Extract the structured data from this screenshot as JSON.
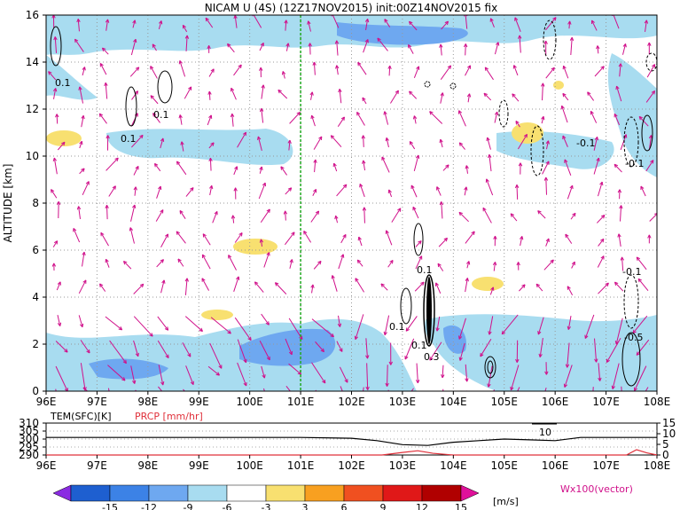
{
  "title": "NICAM U (4S) (12Z17NOV2015) init:00Z14NOV2015 fix",
  "main_panel": {
    "ylabel": "ALTITUDE [km]",
    "yticks": [
      "0",
      "2",
      "4",
      "6",
      "8",
      "10",
      "12",
      "14",
      "16"
    ],
    "ylim": [
      0,
      16
    ],
    "xlim": [
      96,
      108
    ],
    "xticks": [
      "96E",
      "97E",
      "98E",
      "99E",
      "100E",
      "101E",
      "102E",
      "103E",
      "104E",
      "105E",
      "106E",
      "107E",
      "108E"
    ],
    "marker_line_lon": 101,
    "contour_labels": [
      "0.1",
      "0.1",
      "0.1",
      "0.1",
      "0.1",
      "0.1",
      "-0.1",
      "-0.1",
      "-0.1",
      "-0.5",
      "0.3"
    ]
  },
  "sub_panel": {
    "left_label_tem": "TEM(SFC)[K]",
    "left_label_prcp": "PRCP [mm/hr]",
    "left_ticks": [
      "310",
      "305",
      "300",
      "295",
      "290"
    ],
    "right_ticks": [
      "15",
      "10",
      "5",
      "0"
    ],
    "annotation": "10",
    "xticks": [
      "96E",
      "97E",
      "98E",
      "99E",
      "100E",
      "101E",
      "102E",
      "103E",
      "104E",
      "105E",
      "106E",
      "107E",
      "108E"
    ]
  },
  "colorbar": {
    "ticks": [
      "-15",
      "-12",
      "-9",
      "-6",
      "-3",
      "3",
      "6",
      "9",
      "12",
      "15"
    ],
    "unit": "[m/s]",
    "vector_label": "Wx100(vector)",
    "colors": [
      "#8a2be2",
      "#1e5fd0",
      "#3c82e6",
      "#6ea8f0",
      "#a8dcf0",
      "#ffffff",
      "#f8e070",
      "#f8a020",
      "#f05020",
      "#e01818",
      "#b00000",
      "#e0109a"
    ]
  },
  "chart_data": {
    "type": "heatmap",
    "title": "NICAM U (4S) (12Z17NOV2015) init:00Z14NOV2015 fix",
    "xlabel": "",
    "ylabel": "ALTITUDE [km]",
    "xlim": [
      96,
      108
    ],
    "ylim": [
      0,
      16
    ],
    "grid": true,
    "shading_levels": [
      -15,
      -12,
      -9,
      -6,
      -3,
      3,
      6,
      9,
      12,
      15
    ],
    "surface_temperature_K": {
      "x": [
        96,
        97,
        98,
        99,
        100,
        101,
        102,
        102.5,
        103,
        103.5,
        104,
        104.5,
        105,
        105.5,
        106,
        106.5,
        107,
        108
      ],
      "y": [
        301,
        301,
        301,
        301,
        301,
        301,
        300.5,
        299,
        296.5,
        296,
        298,
        299,
        300,
        299.5,
        299,
        301,
        301,
        301
      ]
    },
    "precipitation_mm_hr": {
      "x": [
        96,
        102.6,
        103,
        103.3,
        103.6,
        104,
        107.4,
        107.6,
        107.8,
        108
      ],
      "y": [
        0,
        0,
        1.2,
        2,
        0.8,
        0,
        0,
        2.5,
        1,
        0
      ]
    }
  }
}
